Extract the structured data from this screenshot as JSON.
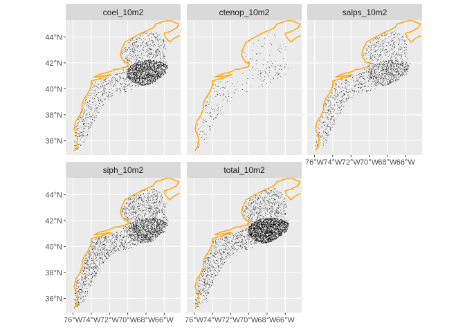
{
  "map": {
    "type": "faceted-point-map",
    "coastline_color": "#FFA500",
    "point_color": "#000000",
    "panel_background": "#EBEBEB",
    "strip_background": "#D9D9D9",
    "grid_color": "#FFFFFF",
    "lon_range": [
      -76.8,
      -64.2
    ],
    "lat_range": [
      34.9,
      45.3
    ],
    "x_ticks": [
      {
        "value": -76,
        "label": "76°W"
      },
      {
        "value": -74,
        "label": "74°W"
      },
      {
        "value": -72,
        "label": "72°W"
      },
      {
        "value": -70,
        "label": "70°W"
      },
      {
        "value": -68,
        "label": "68°W"
      },
      {
        "value": -66,
        "label": "66°W"
      }
    ],
    "y_ticks": [
      {
        "value": 36,
        "label": "36°N"
      },
      {
        "value": 38,
        "label": "38°N"
      },
      {
        "value": 40,
        "label": "40°N"
      },
      {
        "value": 42,
        "label": "42°N"
      },
      {
        "value": 44,
        "label": "44°N"
      }
    ],
    "panels": [
      {
        "label": "coel_10m2",
        "density": "high"
      },
      {
        "label": "ctenop_10m2",
        "density": "low"
      },
      {
        "label": "salps_10m2",
        "density": "medium"
      },
      {
        "label": "siph_10m2",
        "density": "high"
      },
      {
        "label": "total_10m2",
        "density": "very-high"
      }
    ]
  }
}
